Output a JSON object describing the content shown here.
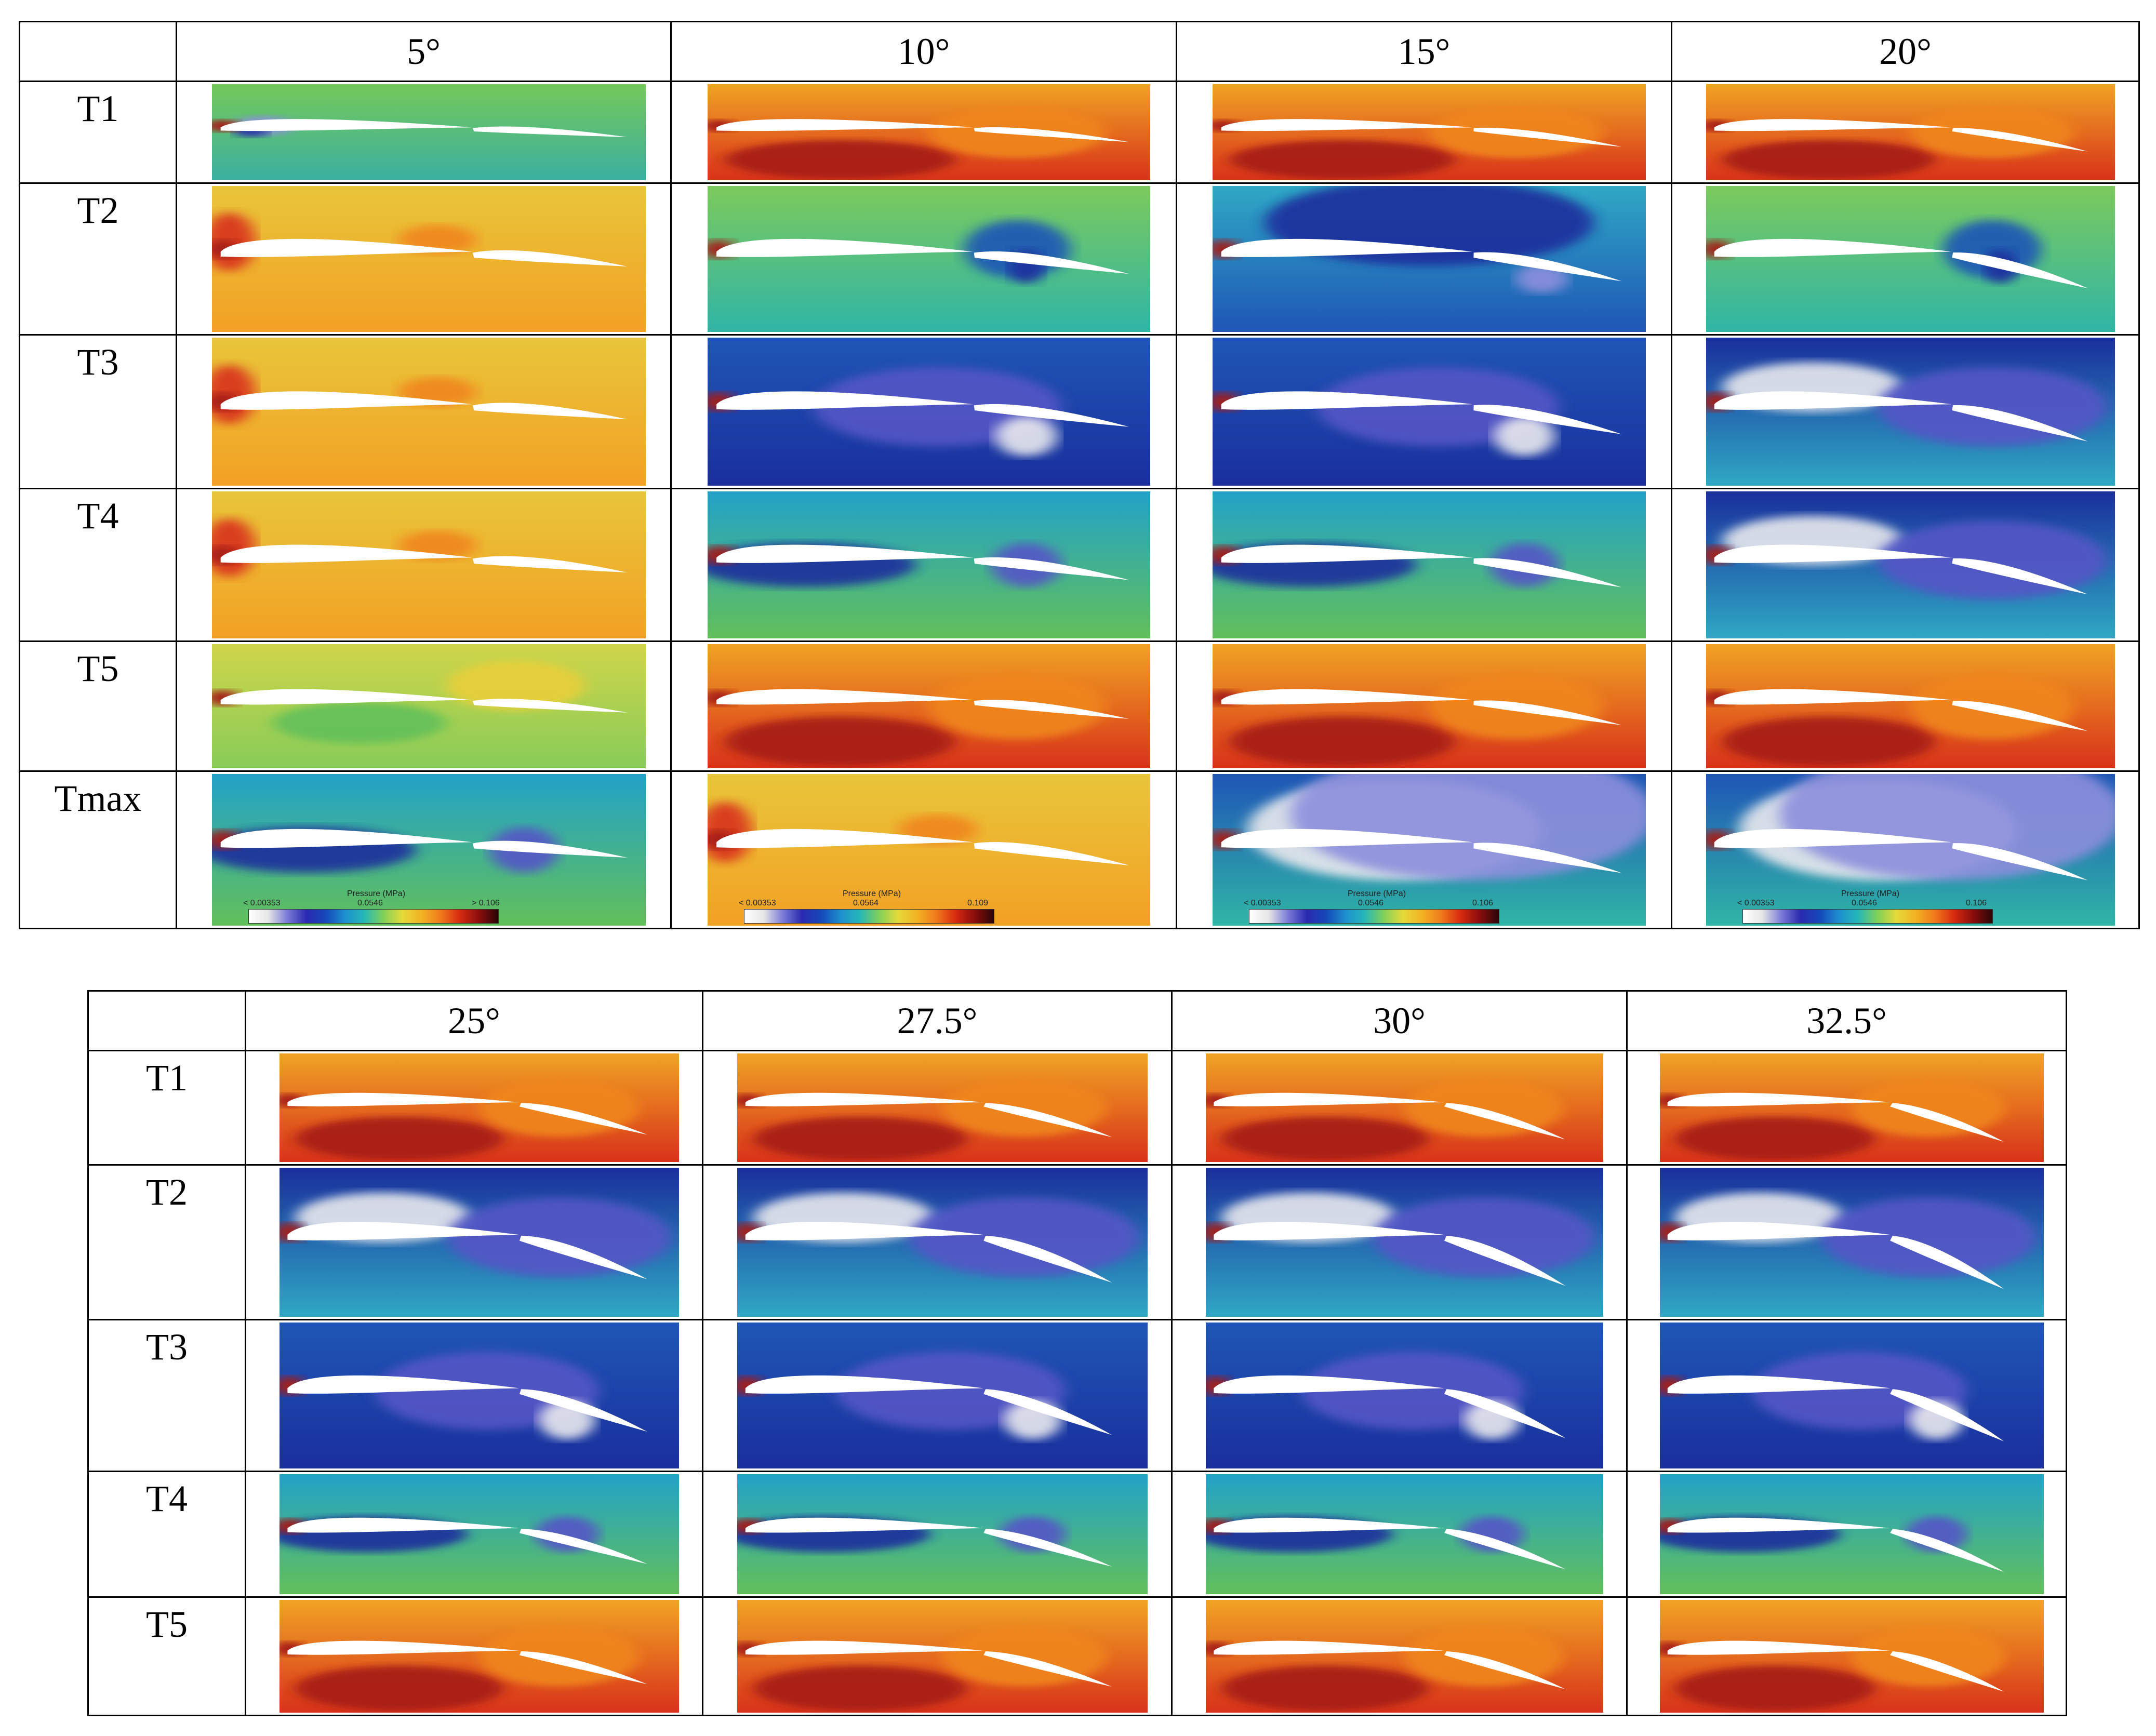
{
  "top_table": {
    "corner": "",
    "columns": [
      "5°",
      "10°",
      "15°",
      "20°"
    ],
    "rows": [
      "T1",
      "T2",
      "T3",
      "T4",
      "T5",
      "Tmax"
    ]
  },
  "bottom_table": {
    "corner": "",
    "columns": [
      "25°",
      "27.5°",
      "30°",
      "32.5°"
    ],
    "rows": [
      "T1",
      "T2",
      "T3",
      "T4",
      "T5"
    ]
  },
  "colorbars": [
    {
      "title": "Pressure (MPa)",
      "min": "< 0.00353",
      "mid": "0.0546",
      "max": "> 0.106"
    },
    {
      "title": "Pressure (MPa)",
      "min": "< 0.00353",
      "mid": "0.0564",
      "max": "0.109"
    },
    {
      "title": "Pressure (MPa)",
      "min": "< 0.00353",
      "mid": "0.0546",
      "max": "0.106"
    },
    {
      "title": "Pressure (MPa)",
      "min": "< 0.00353",
      "mid": "0.0546",
      "max": "0.106"
    }
  ],
  "palette": {
    "colorbar_gradient": [
      "#ffffff",
      "#e6e6e6",
      "#7b7bd8",
      "#2a2ab0",
      "#1548b8",
      "#1e8fcf",
      "#25b7b8",
      "#7fd05a",
      "#e5da3a",
      "#f2b222",
      "#f07a1c",
      "#d82a10",
      "#8a0d0d",
      "#2a0606"
    ]
  }
}
